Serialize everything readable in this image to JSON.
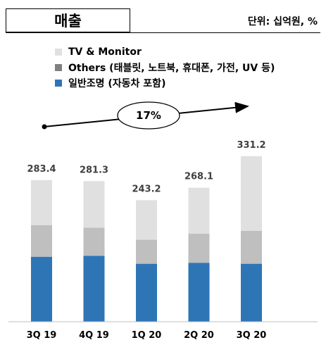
{
  "header": {
    "title": "매출",
    "unit": "단위: 십억원, %"
  },
  "chart_data": {
    "type": "bar",
    "stacked": true,
    "categories": [
      "3Q 19",
      "4Q 19",
      "1Q 20",
      "2Q 20",
      "3Q 20"
    ],
    "totals": [
      "283.4",
      "281.3",
      "243.2",
      "268.1",
      "331.2"
    ],
    "series": [
      {
        "name": "일반조명 (자동차 포함)",
        "color": "#2e75b6",
        "values": [
          130,
          132,
          116,
          118,
          116
        ]
      },
      {
        "name": "Others (태블릿, 노트북, 휴대폰, 가전, UV 등)",
        "color": "#bfbfbf",
        "values": [
          63,
          56,
          48,
          58,
          66
        ]
      },
      {
        "name": "TV & Monitor",
        "color": "#e0e0e0",
        "values": [
          90.4,
          93.3,
          79.2,
          92.1,
          149.2
        ]
      }
    ],
    "growth_annotation": "17%",
    "legend_order": [
      "TV & Monitor",
      "Others (태블릿, 노트북, 휴대폰, 가전, UV 등)",
      "일반조명 (자동차 포함)"
    ]
  }
}
